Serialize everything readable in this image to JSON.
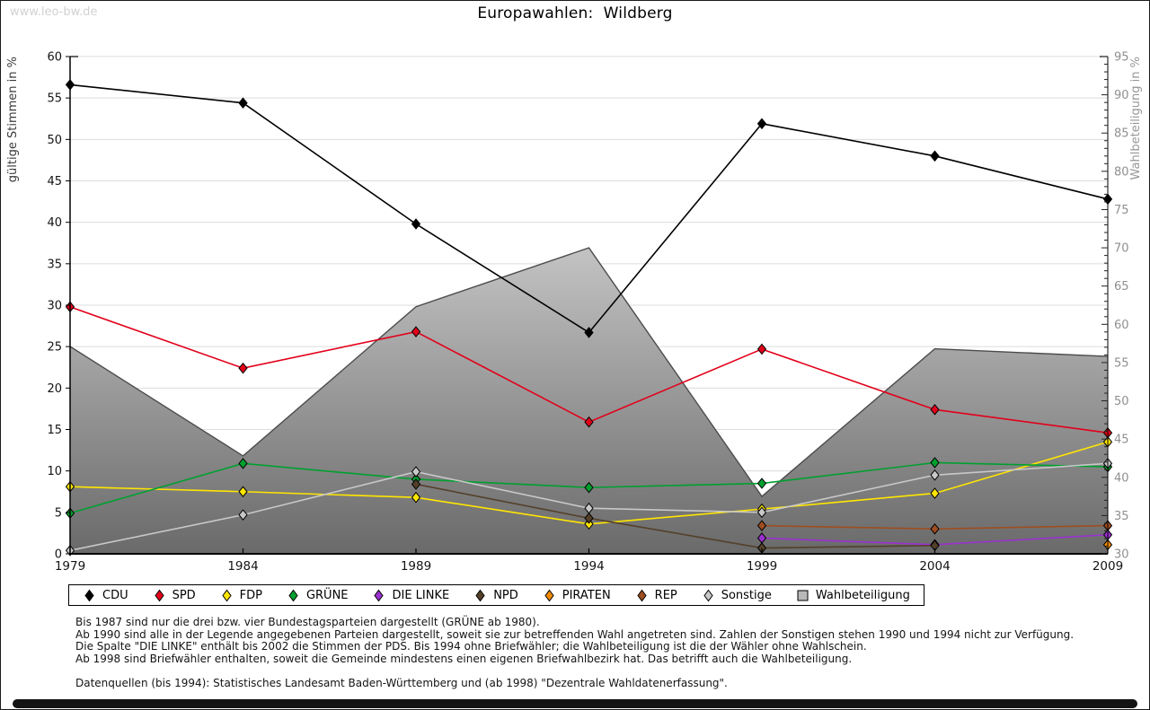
{
  "watermark": "www.leo-bw.de",
  "chart_data": {
    "type": "line",
    "title": "Europawahlen:  Wildberg",
    "x": [
      1979,
      1984,
      1989,
      1994,
      1999,
      2004,
      2009
    ],
    "ylabel_left": "gültige Stimmen in %",
    "ylabel_right": "Wahlbeteiligung in %",
    "ylim_left": [
      0,
      60
    ],
    "ylim_right": [
      30,
      95
    ],
    "ytick_step": 5,
    "right_minor_tick_step": 1,
    "grid": true,
    "legend_position": "bottom",
    "series": [
      {
        "name": "CDU",
        "axis": "left",
        "marker": "diamond",
        "color": "#000000",
        "values": [
          56.6,
          54.4,
          39.8,
          26.7,
          51.9,
          48.0,
          42.8
        ]
      },
      {
        "name": "SPD",
        "axis": "left",
        "marker": "diamond",
        "color": "#e2001a",
        "values": [
          29.8,
          22.4,
          26.8,
          15.9,
          24.7,
          17.4,
          14.6
        ]
      },
      {
        "name": "FDP",
        "axis": "left",
        "marker": "diamond",
        "color": "#ffe600",
        "values": [
          8.1,
          7.5,
          6.8,
          3.6,
          5.4,
          7.3,
          13.5
        ]
      },
      {
        "name": "GRÜNE",
        "axis": "left",
        "marker": "diamond",
        "color": "#00a02f",
        "values": [
          4.9,
          10.9,
          9.0,
          8.0,
          8.5,
          11.0,
          10.5
        ]
      },
      {
        "name": "DIE LINKE",
        "axis": "left",
        "marker": "diamond",
        "color": "#9b30d0",
        "values": [
          null,
          null,
          null,
          null,
          1.9,
          1.1,
          2.3
        ]
      },
      {
        "name": "NPD",
        "axis": "left",
        "marker": "diamond",
        "color": "#54402a",
        "values": [
          null,
          null,
          8.4,
          4.3,
          0.7,
          1.0,
          null
        ]
      },
      {
        "name": "PIRATEN",
        "axis": "left",
        "marker": "diamond",
        "color": "#f28a00",
        "values": [
          null,
          null,
          null,
          null,
          null,
          null,
          1.1
        ]
      },
      {
        "name": "REP",
        "axis": "left",
        "marker": "diamond",
        "color": "#9e4e20",
        "values": [
          null,
          null,
          null,
          null,
          3.4,
          3.0,
          3.4
        ]
      },
      {
        "name": "Sonstige",
        "axis": "left",
        "marker": "diamond",
        "color": "#c8c8c8",
        "values": [
          0.4,
          4.7,
          9.9,
          5.5,
          5.0,
          9.5,
          10.9
        ]
      },
      {
        "name": "Wahlbeteiligung",
        "axis": "right",
        "marker": "square",
        "color": "#b9b9b9",
        "type": "area",
        "values": [
          57.1,
          42.8,
          62.3,
          70.0,
          37.5,
          56.8,
          55.8
        ]
      }
    ]
  },
  "footnotes": {
    "lines": [
      "Bis 1987 sind nur die drei bzw. vier Bundestagsparteien dargestellt (GRÜNE ab 1980).",
      "Ab 1990 sind alle in der Legende angegebenen Parteien dargestellt, soweit sie zur betreffenden Wahl angetreten sind. Zahlen der Sonstigen stehen 1990 und 1994 nicht zur Verfügung.",
      "Die Spalte \"DIE LINKE\" enthält bis 2002 die Stimmen der PDS. Bis 1994 ohne Briefwähler; die Wahlbeteiligung ist die der Wähler ohne Wahlschein.",
      "Ab 1998 sind Briefwähler enthalten, soweit die Gemeinde mindestens einen eigenen Briefwahlbezirk hat. Das betrifft auch die Wahlbeteiligung.",
      "",
      "Datenquellen (bis 1994): Statistisches Landesamt Baden-Württemberg und (ab 1998) \"Dezentrale Wahldatenerfassung\"."
    ]
  }
}
